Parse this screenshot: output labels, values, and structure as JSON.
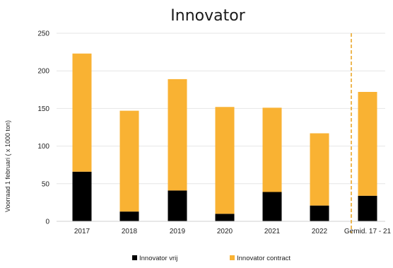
{
  "chart_data": {
    "type": "bar",
    "stacked": true,
    "title": "Innovator",
    "ylabel": "Voorraad 1 februari  ( x 1000 ton)",
    "xlabel": "",
    "ylim": [
      0,
      250
    ],
    "yticks": [
      0,
      50,
      100,
      150,
      200,
      250
    ],
    "grid": true,
    "legend_position": "bottom",
    "categories": [
      "2017",
      "2018",
      "2019",
      "2020",
      "2021",
      "2022",
      "Gemid. 17 - 21"
    ],
    "separator_before_category": "Gemid. 17 - 21",
    "series": [
      {
        "name": "Innovator vrij",
        "color": "#000000",
        "values": [
          66,
          13,
          41,
          10,
          39,
          21,
          34
        ]
      },
      {
        "name": "Innovator contract",
        "color": "#F9B233",
        "values": [
          157,
          134,
          148,
          142,
          112,
          96,
          138
        ]
      }
    ],
    "separator_color": "#E8A11A"
  }
}
